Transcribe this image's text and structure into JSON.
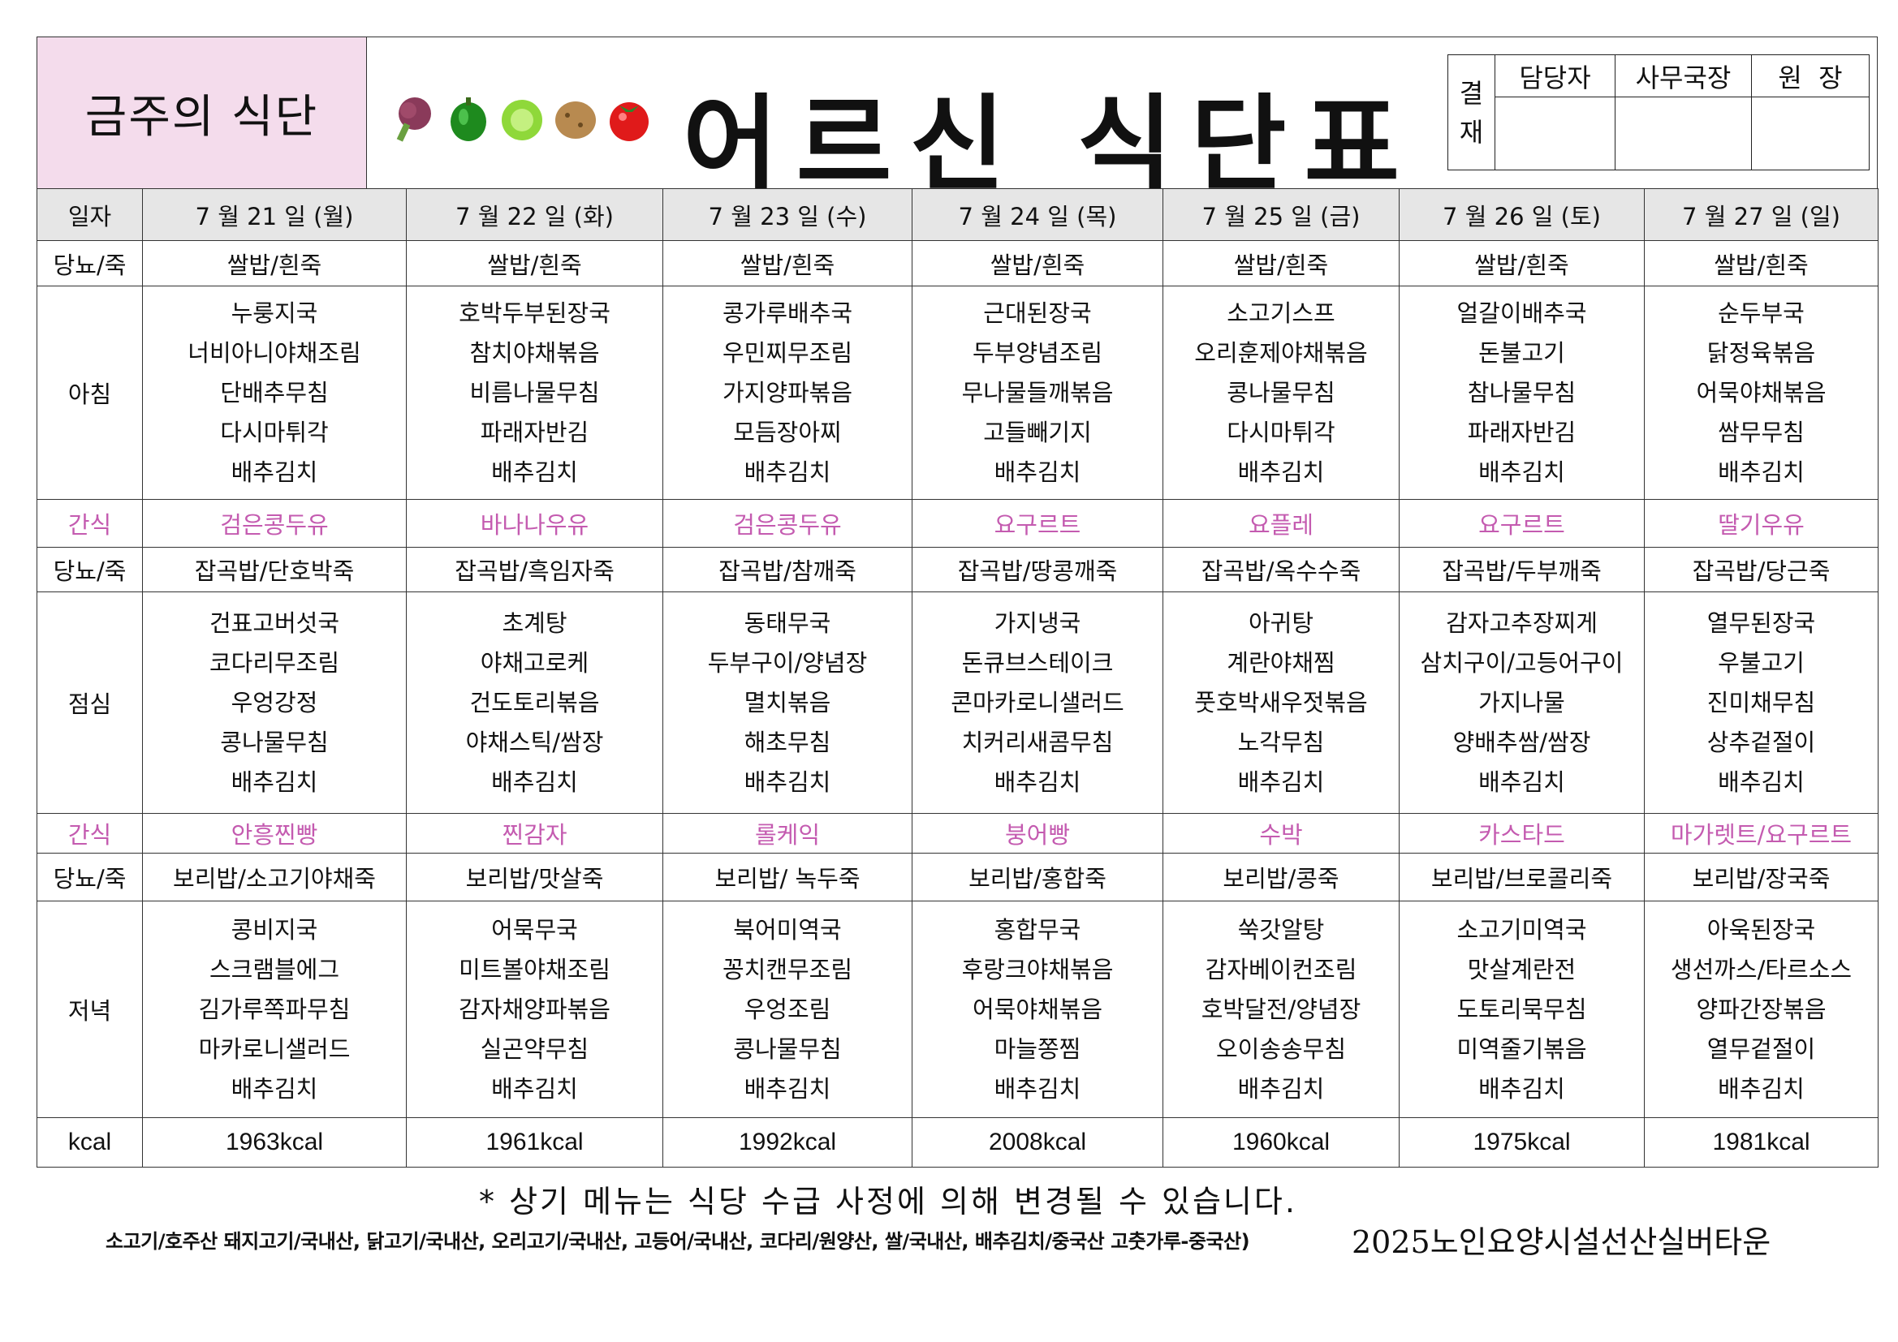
{
  "header": {
    "week_label": "금주의 식단",
    "title": "어르신 식단표",
    "decor_icons": [
      "lettuce-icon",
      "pepper-icon",
      "cabbage-icon",
      "potato-icon",
      "tomato-icon"
    ],
    "approval": {
      "label": "결\n재",
      "columns": [
        "담당자",
        "사무국장",
        "원  장"
      ]
    }
  },
  "colors": {
    "header_pink": "#f4dcec",
    "snack_text": "#c45bb0",
    "date_row_bg": "#e6e6e6"
  },
  "table": {
    "row_labels": {
      "date": "일자",
      "diabetes": "당뇨/죽",
      "breakfast": "아침",
      "snack": "간식",
      "lunch": "점심",
      "dinner": "저녁",
      "kcal": "kcal"
    },
    "days": [
      {
        "date": "7 월 21 일 (월)",
        "d_breakfast": "쌀밥/흰죽",
        "breakfast": [
          "누룽지국",
          "너비아니야채조림",
          "단배추무침",
          "다시마튀각",
          "배추김치"
        ],
        "snack_am": "검은콩두유",
        "d_lunch": "잡곡밥/단호박죽",
        "lunch": [
          "건표고버섯국",
          "코다리무조림",
          "우엉강정",
          "콩나물무침",
          "배추김치"
        ],
        "snack_pm": "안흥찐빵",
        "d_dinner": "보리밥/소고기야채죽",
        "dinner": [
          "콩비지국",
          "스크램블에그",
          "김가루쪽파무침",
          "마카로니샐러드",
          "배추김치"
        ],
        "kcal": "1963kcal"
      },
      {
        "date": "7 월 22 일 (화)",
        "d_breakfast": "쌀밥/흰죽",
        "breakfast": [
          "호박두부된장국",
          "참치야채볶음",
          "비름나물무침",
          "파래자반김",
          "배추김치"
        ],
        "snack_am": "바나나우유",
        "d_lunch": "잡곡밥/흑임자죽",
        "lunch": [
          "초계탕",
          "야채고로케",
          "건도토리볶음",
          "야채스틱/쌈장",
          "배추김치"
        ],
        "snack_pm": "찐감자",
        "d_dinner": "보리밥/맛살죽",
        "dinner": [
          "어묵무국",
          "미트볼야채조림",
          "감자채양파볶음",
          "실곤약무침",
          "배추김치"
        ],
        "kcal": "1961kcal"
      },
      {
        "date": "7 월 23 일 (수)",
        "d_breakfast": "쌀밥/흰죽",
        "breakfast": [
          "콩가루배추국",
          "우민찌무조림",
          "가지양파볶음",
          "모듬장아찌",
          "배추김치"
        ],
        "snack_am": "검은콩두유",
        "d_lunch": "잡곡밥/참깨죽",
        "lunch": [
          "동태무국",
          "두부구이/양념장",
          "멸치볶음",
          "해초무침",
          "배추김치"
        ],
        "snack_pm": "롤케익",
        "d_dinner": "보리밥/ 녹두죽",
        "dinner": [
          "북어미역국",
          "꽁치캔무조림",
          "우엉조림",
          "콩나물무침",
          "배추김치"
        ],
        "kcal": "1992kcal"
      },
      {
        "date": "7 월 24 일 (목)",
        "d_breakfast": "쌀밥/흰죽",
        "breakfast": [
          "근대된장국",
          "두부양념조림",
          "무나물들깨볶음",
          "고들빼기지",
          "배추김치"
        ],
        "snack_am": "요구르트",
        "d_lunch": "잡곡밥/땅콩깨죽",
        "lunch": [
          "가지냉국",
          "돈큐브스테이크",
          "콘마카로니샐러드",
          "치커리새콤무침",
          "배추김치"
        ],
        "snack_pm": "붕어빵",
        "d_dinner": "보리밥/홍합죽",
        "dinner": [
          "홍합무국",
          "후랑크야채볶음",
          "어묵야채볶음",
          "마늘쫑찜",
          "배추김치"
        ],
        "kcal": "2008kcal"
      },
      {
        "date": "7 월 25 일 (금)",
        "d_breakfast": "쌀밥/흰죽",
        "breakfast": [
          "소고기스프",
          "오리훈제야채볶음",
          "콩나물무침",
          "다시마튀각",
          "배추김치"
        ],
        "snack_am": "요플레",
        "d_lunch": "잡곡밥/옥수수죽",
        "lunch": [
          "아귀탕",
          "계란야채찜",
          "풋호박새우젓볶음",
          "노각무침",
          "배추김치"
        ],
        "snack_pm": "수박",
        "d_dinner": "보리밥/콩죽",
        "dinner": [
          "쑥갓알탕",
          "감자베이컨조림",
          "호박달전/양념장",
          "오이송송무침",
          "배추김치"
        ],
        "kcal": "1960kcal"
      },
      {
        "date": "7 월 26 일 (토)",
        "d_breakfast": "쌀밥/흰죽",
        "breakfast": [
          "얼갈이배추국",
          "돈불고기",
          "참나물무침",
          "파래자반김",
          "배추김치"
        ],
        "snack_am": "요구르트",
        "d_lunch": "잡곡밥/두부깨죽",
        "lunch": [
          "감자고추장찌게",
          "삼치구이/고등어구이",
          "가지나물",
          "양배추쌈/쌈장",
          "배추김치"
        ],
        "snack_pm": "카스타드",
        "d_dinner": "보리밥/브로콜리죽",
        "dinner": [
          "소고기미역국",
          "맛살계란전",
          "도토리묵무침",
          "미역줄기볶음",
          "배추김치"
        ],
        "kcal": "1975kcal"
      },
      {
        "date": "7 월 27 일 (일)",
        "d_breakfast": "쌀밥/흰죽",
        "breakfast": [
          "순두부국",
          "닭정육볶음",
          "어묵야채볶음",
          "쌈무무침",
          "배추김치"
        ],
        "snack_am": "딸기우유",
        "d_lunch": "잡곡밥/당근죽",
        "lunch": [
          "열무된장국",
          "우불고기",
          "진미채무침",
          "상추겉절이",
          "배추김치"
        ],
        "snack_pm": "마가렛트/요구르트",
        "d_dinner": "보리밥/장국죽",
        "dinner": [
          "아욱된장국",
          "생선까스/타르소스",
          "양파간장볶음",
          "열무겉절이",
          "배추김치"
        ],
        "kcal": "1981kcal"
      }
    ]
  },
  "footer": {
    "note": "* 상기 메뉴는 식당 수급 사정에 의해 변경될 수 있습니다.",
    "origin": "소고기/호주산 돼지고기/국내산, 닭고기/국내산, 오리고기/국내산, 고등어/국내산, 코다리/원양산, 쌀/국내산, 배추김치/중국산  고춧가루-중국산)",
    "organization": "2025노인요양시설선산실버타운"
  }
}
